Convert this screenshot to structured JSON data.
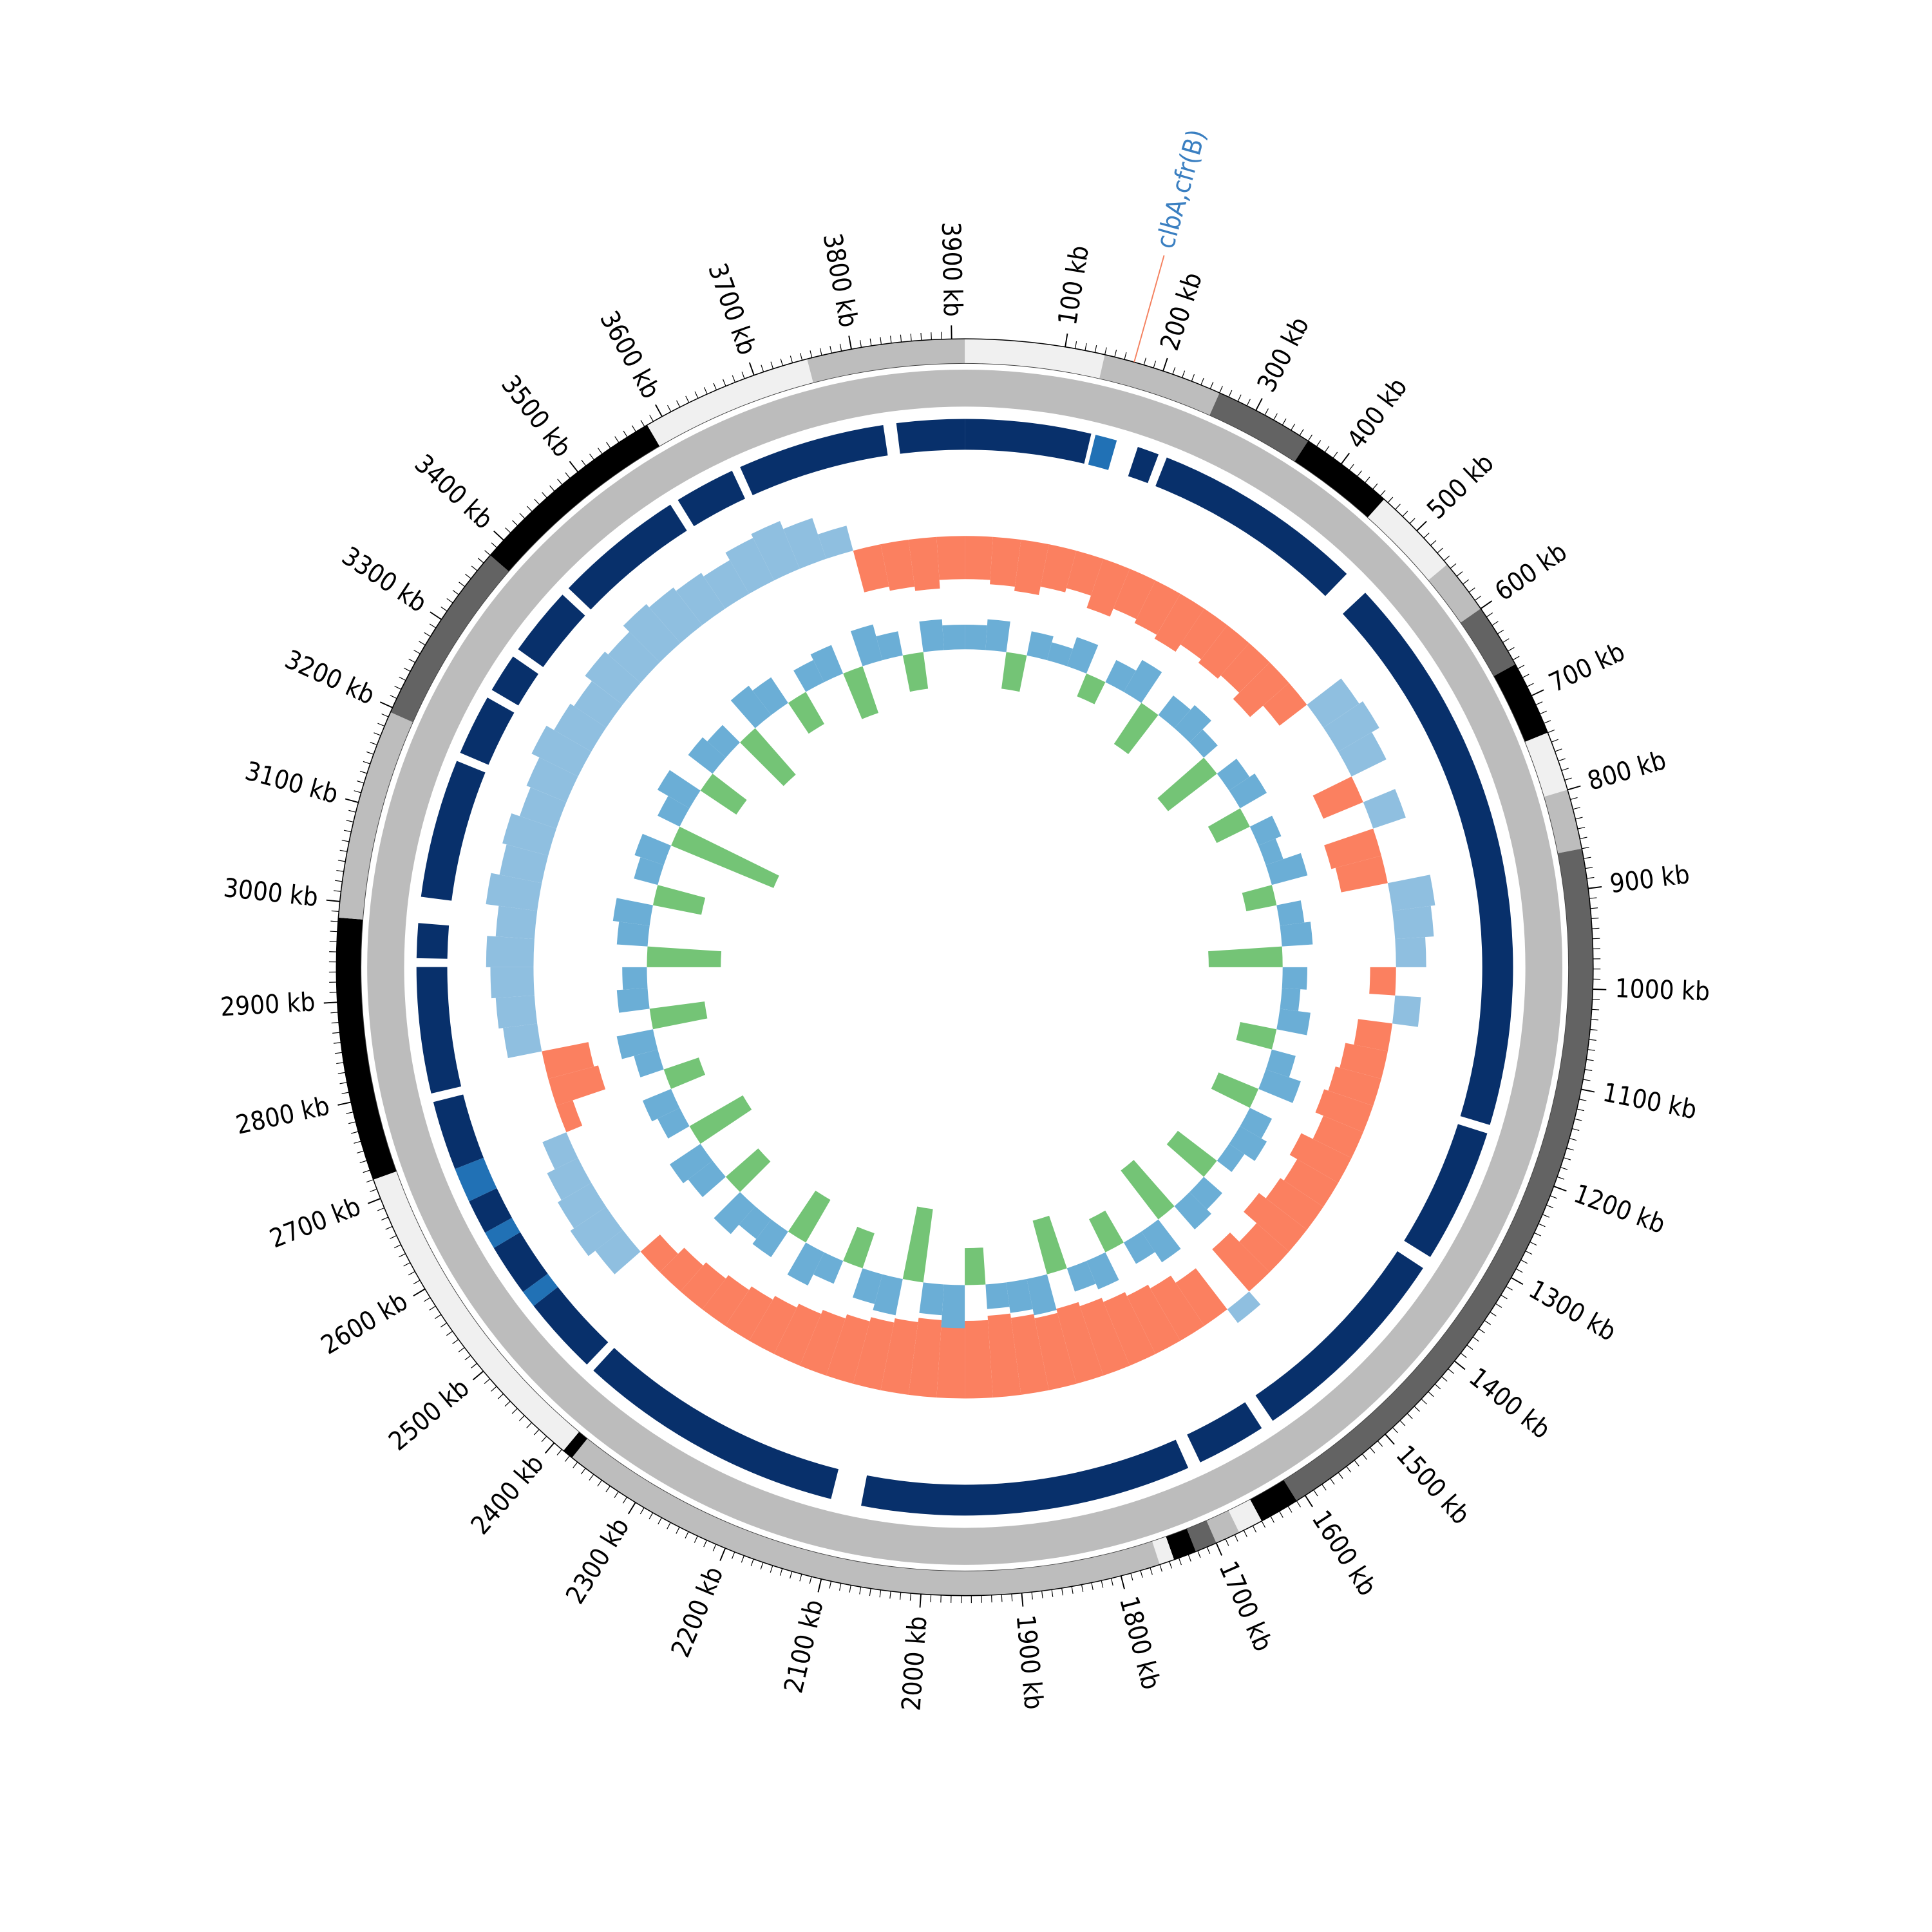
{
  "chart_data": {
    "type": "circular",
    "xlim": [
      0,
      3913
    ],
    "xticks": [
      {
        "value": 100,
        "label": "100 kb"
      },
      {
        "value": 200,
        "label": "200 kb"
      },
      {
        "value": 300,
        "label": "300 kb"
      },
      {
        "value": 400,
        "label": "400 kb"
      },
      {
        "value": 500,
        "label": "500 kb"
      },
      {
        "value": 600,
        "label": "600 kb"
      },
      {
        "value": 700,
        "label": "700 kb"
      },
      {
        "value": 800,
        "label": "800 kb"
      },
      {
        "value": 900,
        "label": "900 kb"
      },
      {
        "value": 1000,
        "label": "1000 kb"
      },
      {
        "value": 1100,
        "label": "1100 kb"
      },
      {
        "value": 1200,
        "label": "1200 kb"
      },
      {
        "value": 1300,
        "label": "1300 kb"
      },
      {
        "value": 1400,
        "label": "1400 kb"
      },
      {
        "value": 1500,
        "label": "1500 kb"
      },
      {
        "value": 1600,
        "label": "1600 kb"
      },
      {
        "value": 1700,
        "label": "1700 kb"
      },
      {
        "value": 1800,
        "label": "1800 kb"
      },
      {
        "value": 1900,
        "label": "1900 kb"
      },
      {
        "value": 2000,
        "label": "2000 kb"
      },
      {
        "value": 2100,
        "label": "2100 kb"
      },
      {
        "value": 2200,
        "label": "2200 kb"
      },
      {
        "value": 2300,
        "label": "2300 kb"
      },
      {
        "value": 2400,
        "label": "2400 kb"
      },
      {
        "value": 2500,
        "label": "2500 kb"
      },
      {
        "value": 2600,
        "label": "2600 kb"
      },
      {
        "value": 2700,
        "label": "2700 kb"
      },
      {
        "value": 2800,
        "label": "2800 kb"
      },
      {
        "value": 2900,
        "label": "2900 kb"
      },
      {
        "value": 3000,
        "label": "3000 kb"
      },
      {
        "value": 3100,
        "label": "3100 kb"
      },
      {
        "value": 3200,
        "label": "3200 kb"
      },
      {
        "value": 3300,
        "label": "3300 kb"
      },
      {
        "value": 3400,
        "label": "3400 kb"
      },
      {
        "value": 3500,
        "label": "3500 kb"
      },
      {
        "value": 3600,
        "label": "3600 kb"
      },
      {
        "value": 3700,
        "label": "3700 kb"
      },
      {
        "value": 3800,
        "label": "3800 kb"
      },
      {
        "value": 3900,
        "label": "3900 kb"
      }
    ],
    "contigs": [
      {
        "start": 0,
        "end": 140,
        "color": "#f0f0f0"
      },
      {
        "start": 140,
        "end": 260,
        "color": "#bdbdbd"
      },
      {
        "start": 260,
        "end": 360,
        "color": "#636363"
      },
      {
        "start": 360,
        "end": 455,
        "color": "#000000"
      },
      {
        "start": 455,
        "end": 545,
        "color": "#f0f0f0"
      },
      {
        "start": 545,
        "end": 600,
        "color": "#bdbdbd"
      },
      {
        "start": 600,
        "end": 665,
        "color": "#636363"
      },
      {
        "start": 665,
        "end": 740,
        "color": "#000000"
      },
      {
        "start": 740,
        "end": 800,
        "color": "#f0f0f0"
      },
      {
        "start": 800,
        "end": 860,
        "color": "#bdbdbd"
      },
      {
        "start": 860,
        "end": 1610,
        "color": "#636363"
      },
      {
        "start": 1610,
        "end": 1650,
        "color": "#000000"
      },
      {
        "start": 1650,
        "end": 1675,
        "color": "#f0f0f0"
      },
      {
        "start": 1675,
        "end": 1700,
        "color": "#bdbdbd"
      },
      {
        "start": 1700,
        "end": 1722,
        "color": "#636363"
      },
      {
        "start": 1722,
        "end": 1745,
        "color": "#000000"
      },
      {
        "start": 1745,
        "end": 1760,
        "color": "#f0f0f0"
      },
      {
        "start": 1760,
        "end": 2377,
        "color": "#bdbdbd"
      },
      {
        "start": 2377,
        "end": 2388,
        "color": "#000000"
      },
      {
        "start": 2388,
        "end": 2720,
        "color": "#f0f0f0"
      },
      {
        "start": 2720,
        "end": 2984,
        "color": "#000000"
      },
      {
        "start": 2984,
        "end": 3195,
        "color": "#bdbdbd"
      },
      {
        "start": 3195,
        "end": 3380,
        "color": "#636363"
      },
      {
        "start": 3380,
        "end": 3583,
        "color": "#000000"
      },
      {
        "start": 3583,
        "end": 3755,
        "color": "#f0f0f0"
      },
      {
        "start": 3755,
        "end": 3913,
        "color": "#bdbdbd"
      }
    ],
    "gene_ring_color": "#a6a6a6",
    "blocks": {
      "color": "#08306b",
      "segments": [
        [
          0,
          145
        ],
        [
          200,
          225
        ],
        [
          235,
          480
        ],
        [
          510,
          1160
        ],
        [
          1170,
          1325
        ],
        [
          1340,
          1585
        ],
        [
          1600,
          1680
        ],
        [
          1695,
          2075
        ],
        [
          2110,
          2420
        ],
        [
          2430,
          2520
        ],
        [
          2540,
          2600
        ],
        [
          2620,
          2660
        ],
        [
          2700,
          2780
        ],
        [
          2790,
          2935
        ],
        [
          2945,
          2985
        ],
        [
          3015,
          3175
        ],
        [
          3185,
          3255
        ],
        [
          3265,
          3310
        ],
        [
          3320,
          3400
        ],
        [
          3410,
          3560
        ],
        [
          3570,
          3640
        ],
        [
          3650,
          3820
        ],
        [
          3835,
          3913
        ]
      ]
    },
    "highlight_blocks": {
      "color": "#2171b5",
      "segments": [
        [
          150,
          175
        ],
        [
          2520,
          2540
        ],
        [
          2600,
          2620
        ],
        [
          2660,
          2700
        ]
      ]
    },
    "tracks": [
      {
        "ylim": [
          -1,
          1
        ],
        "positive_color": "#8fbfe0",
        "negative_color": "#fb8060",
        "values": [
          -0.5,
          -0.55,
          -0.6,
          -0.5,
          -0.45,
          -0.6,
          -0.5,
          -0.55,
          -0.6,
          -0.5,
          -0.55,
          -0.5,
          -0.6,
          -0.4,
          0.5,
          0.55,
          0.45,
          -0.5,
          0.4,
          -0.6,
          -0.55,
          0.5,
          0.45,
          0.35,
          -0.3,
          0.3,
          -0.4,
          -0.5,
          -0.55,
          -0.6,
          -0.5,
          -0.65,
          -0.55,
          -0.6,
          -0.7,
          -0.5,
          -0.65,
          0.2,
          -0.6,
          -0.7,
          -0.75,
          -0.8,
          -0.85,
          -0.9,
          -0.85,
          -0.9,
          -0.95,
          -0.9,
          -0.85,
          -0.9,
          -0.85,
          -0.8,
          -0.75,
          -0.7,
          -0.65,
          -0.6,
          -0.55,
          -0.5,
          -0.45,
          -0.4,
          -0.3,
          0.4,
          0.5,
          0.45,
          0.4,
          0.3,
          -0.2,
          -0.6,
          -0.55,
          0.4,
          0.45,
          0.5,
          0.55,
          0.45,
          0.6,
          0.5,
          0.55,
          0.45,
          0.5,
          0.6,
          0.5,
          0.45,
          0.55,
          0.5,
          0.6,
          0.55,
          0.5,
          0.45,
          0.55,
          0.6,
          0.5,
          0.3,
          -0.5,
          -0.55,
          -0.6,
          -0.5
        ]
      },
      {
        "ylim": [
          -1,
          1
        ],
        "positive_color": "#6baed6",
        "negative_color": "#74c476",
        "values": [
          0.2,
          0.25,
          -0.3,
          0.2,
          0.15,
          0.25,
          -0.2,
          0.2,
          0.3,
          -0.4,
          0.2,
          0.25,
          0.15,
          -0.5,
          0.2,
          0.25,
          -0.3,
          0.2,
          0.15,
          0.3,
          -0.25,
          0.2,
          0.25,
          -0.6,
          0.2,
          0.15,
          0.25,
          -0.3,
          0.2,
          0.3,
          -0.35,
          0.2,
          0.25,
          0.15,
          -0.4,
          0.2,
          0.25,
          -0.5,
          0.3,
          0.2,
          -0.3,
          0.25,
          0.2,
          -0.45,
          0.3,
          0.25,
          0.2,
          -0.3,
          0.35,
          0.25,
          -0.6,
          0.3,
          0.25,
          -0.3,
          0.2,
          0.3,
          -0.4,
          0.25,
          0.2,
          0.3,
          -0.35,
          0.25,
          0.3,
          -0.5,
          0.2,
          0.25,
          -0.3,
          0.2,
          0.3,
          -0.45,
          0.25,
          0.2,
          -0.6,
          0.25,
          0.3,
          -0.4,
          0.2,
          0.25,
          -0.9,
          0.2,
          0.3,
          -0.35,
          0.25,
          0.2,
          -0.5,
          0.3,
          0.25,
          -0.3,
          0.2,
          0.25,
          -0.4,
          0.3,
          0.2,
          -0.3,
          0.25,
          0.2
        ]
      }
    ],
    "annotations": [
      {
        "label": "clbA,cfr(B)",
        "position": 170,
        "color": "#3a7fc1",
        "line_color": "#f4805e"
      }
    ]
  }
}
